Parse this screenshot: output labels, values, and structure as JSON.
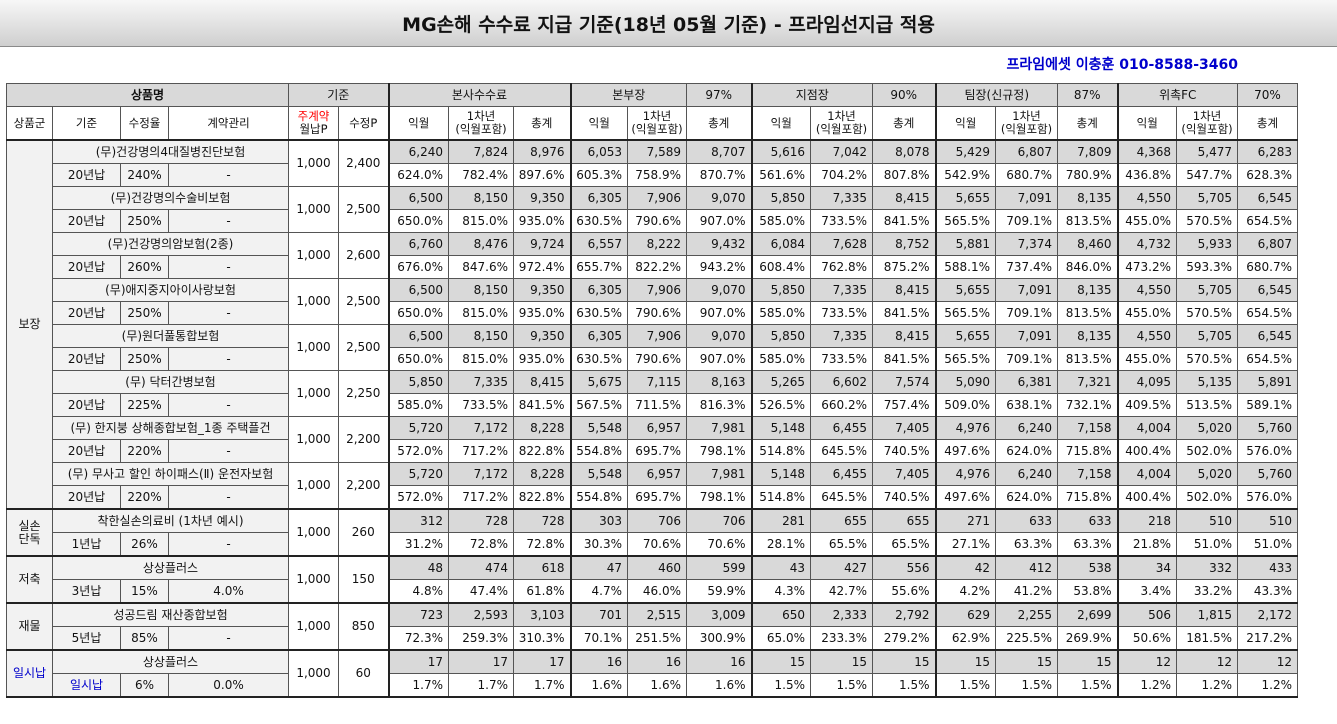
{
  "title": "MG손해 수수료 지급 기준(18년 05월 기준) - 프라임선지급 적용",
  "contact": "프라임에셋 이충훈 010-8588-3460",
  "header": {
    "product": "상품명",
    "basis": "기준",
    "hq": "본사수수료",
    "bonbu": "본부장",
    "bonbu_pct": "97%",
    "jijeom": "지점장",
    "jijeom_pct": "90%",
    "team": "팀장(신규정)",
    "team_pct": "87%",
    "wichuk": "위촉FC",
    "wichuk_pct": "70%",
    "col_group": "상품군",
    "col_basis": "기준",
    "col_rate": "수정율",
    "col_contract": "계약관리",
    "col_jugye": "주계약",
    "col_wolnap": "월납P",
    "col_sujeong": "수정P",
    "col_ikwol": "익월",
    "col_y1a": "1차년",
    "col_y1b": "(익월포함)",
    "col_total": "총계"
  },
  "rows": [
    {
      "name": "(무)건강명의4대질병진단보험",
      "basis": "20년납",
      "rate": "240%",
      "contract": "-",
      "monthly": "1,000",
      "sujeong": "2,400",
      "v": [
        "6,240",
        "7,824",
        "8,976",
        "6,053",
        "7,589",
        "8,707",
        "5,616",
        "7,042",
        "8,078",
        "5,429",
        "6,807",
        "7,809",
        "4,368",
        "5,477",
        "6,283"
      ],
      "p": [
        "624.0%",
        "782.4%",
        "897.6%",
        "605.3%",
        "758.9%",
        "870.7%",
        "561.6%",
        "704.2%",
        "807.8%",
        "542.9%",
        "680.7%",
        "780.9%",
        "436.8%",
        "547.7%",
        "628.3%"
      ]
    },
    {
      "name": "(무)건강명의수술비보험",
      "basis": "20년납",
      "rate": "250%",
      "contract": "-",
      "monthly": "1,000",
      "sujeong": "2,500",
      "v": [
        "6,500",
        "8,150",
        "9,350",
        "6,305",
        "7,906",
        "9,070",
        "5,850",
        "7,335",
        "8,415",
        "5,655",
        "7,091",
        "8,135",
        "4,550",
        "5,705",
        "6,545"
      ],
      "p": [
        "650.0%",
        "815.0%",
        "935.0%",
        "630.5%",
        "790.6%",
        "907.0%",
        "585.0%",
        "733.5%",
        "841.5%",
        "565.5%",
        "709.1%",
        "813.5%",
        "455.0%",
        "570.5%",
        "654.5%"
      ]
    },
    {
      "name": "(무)건강명의암보험(2종)",
      "basis": "20년납",
      "rate": "260%",
      "contract": "-",
      "monthly": "1,000",
      "sujeong": "2,600",
      "v": [
        "6,760",
        "8,476",
        "9,724",
        "6,557",
        "8,222",
        "9,432",
        "6,084",
        "7,628",
        "8,752",
        "5,881",
        "7,374",
        "8,460",
        "4,732",
        "5,933",
        "6,807"
      ],
      "p": [
        "676.0%",
        "847.6%",
        "972.4%",
        "655.7%",
        "822.2%",
        "943.2%",
        "608.4%",
        "762.8%",
        "875.2%",
        "588.1%",
        "737.4%",
        "846.0%",
        "473.2%",
        "593.3%",
        "680.7%"
      ]
    },
    {
      "name": "(무)애지중지아이사랑보험",
      "basis": "20년납",
      "rate": "250%",
      "contract": "-",
      "monthly": "1,000",
      "sujeong": "2,500",
      "v": [
        "6,500",
        "8,150",
        "9,350",
        "6,305",
        "7,906",
        "9,070",
        "5,850",
        "7,335",
        "8,415",
        "5,655",
        "7,091",
        "8,135",
        "4,550",
        "5,705",
        "6,545"
      ],
      "p": [
        "650.0%",
        "815.0%",
        "935.0%",
        "630.5%",
        "790.6%",
        "907.0%",
        "585.0%",
        "733.5%",
        "841.5%",
        "565.5%",
        "709.1%",
        "813.5%",
        "455.0%",
        "570.5%",
        "654.5%"
      ]
    },
    {
      "name": "(무)원더풀통합보험",
      "basis": "20년납",
      "rate": "250%",
      "contract": "-",
      "monthly": "1,000",
      "sujeong": "2,500",
      "v": [
        "6,500",
        "8,150",
        "9,350",
        "6,305",
        "7,906",
        "9,070",
        "5,850",
        "7,335",
        "8,415",
        "5,655",
        "7,091",
        "8,135",
        "4,550",
        "5,705",
        "6,545"
      ],
      "p": [
        "650.0%",
        "815.0%",
        "935.0%",
        "630.5%",
        "790.6%",
        "907.0%",
        "585.0%",
        "733.5%",
        "841.5%",
        "565.5%",
        "709.1%",
        "813.5%",
        "455.0%",
        "570.5%",
        "654.5%"
      ]
    },
    {
      "name": "(무) 닥터간병보험",
      "basis": "20년납",
      "rate": "225%",
      "contract": "-",
      "monthly": "1,000",
      "sujeong": "2,250",
      "v": [
        "5,850",
        "7,335",
        "8,415",
        "5,675",
        "7,115",
        "8,163",
        "5,265",
        "6,602",
        "7,574",
        "5,090",
        "6,381",
        "7,321",
        "4,095",
        "5,135",
        "5,891"
      ],
      "p": [
        "585.0%",
        "733.5%",
        "841.5%",
        "567.5%",
        "711.5%",
        "816.3%",
        "526.5%",
        "660.2%",
        "757.4%",
        "509.0%",
        "638.1%",
        "732.1%",
        "409.5%",
        "513.5%",
        "589.1%"
      ]
    },
    {
      "name": "(무) 한지붕 상해종합보험_1종 주택플건",
      "basis": "20년납",
      "rate": "220%",
      "contract": "-",
      "monthly": "1,000",
      "sujeong": "2,200",
      "v": [
        "5,720",
        "7,172",
        "8,228",
        "5,548",
        "6,957",
        "7,981",
        "5,148",
        "6,455",
        "7,405",
        "4,976",
        "6,240",
        "7,158",
        "4,004",
        "5,020",
        "5,760"
      ],
      "p": [
        "572.0%",
        "717.2%",
        "822.8%",
        "554.8%",
        "695.7%",
        "798.1%",
        "514.8%",
        "645.5%",
        "740.5%",
        "497.6%",
        "624.0%",
        "715.8%",
        "400.4%",
        "502.0%",
        "576.0%"
      ]
    },
    {
      "name": "(무) 무사고 할인 하이패스(Ⅱ) 운전자보험",
      "basis": "20년납",
      "rate": "220%",
      "contract": "-",
      "monthly": "1,000",
      "sujeong": "2,200",
      "v": [
        "5,720",
        "7,172",
        "8,228",
        "5,548",
        "6,957",
        "7,981",
        "5,148",
        "6,455",
        "7,405",
        "4,976",
        "6,240",
        "7,158",
        "4,004",
        "5,020",
        "5,760"
      ],
      "p": [
        "572.0%",
        "717.2%",
        "822.8%",
        "554.8%",
        "695.7%",
        "798.1%",
        "514.8%",
        "645.5%",
        "740.5%",
        "497.6%",
        "624.0%",
        "715.8%",
        "400.4%",
        "502.0%",
        "576.0%"
      ]
    },
    {
      "name": "착한실손의료비 (1차년 예시)",
      "basis": "1년납",
      "rate": "26%",
      "contract": "-",
      "monthly": "1,000",
      "sujeong": "260",
      "v": [
        "312",
        "728",
        "728",
        "303",
        "706",
        "706",
        "281",
        "655",
        "655",
        "271",
        "633",
        "633",
        "218",
        "510",
        "510"
      ],
      "p": [
        "31.2%",
        "72.8%",
        "72.8%",
        "30.3%",
        "70.6%",
        "70.6%",
        "28.1%",
        "65.5%",
        "65.5%",
        "27.1%",
        "63.3%",
        "63.3%",
        "21.8%",
        "51.0%",
        "51.0%"
      ]
    },
    {
      "name": "상상플러스",
      "basis": "3년납",
      "rate": "15%",
      "contract": "4.0%",
      "monthly": "1,000",
      "sujeong": "150",
      "v": [
        "48",
        "474",
        "618",
        "47",
        "460",
        "599",
        "43",
        "427",
        "556",
        "42",
        "412",
        "538",
        "34",
        "332",
        "433"
      ],
      "p": [
        "4.8%",
        "47.4%",
        "61.8%",
        "4.7%",
        "46.0%",
        "59.9%",
        "4.3%",
        "42.7%",
        "55.6%",
        "4.2%",
        "41.2%",
        "53.8%",
        "3.4%",
        "33.2%",
        "43.3%"
      ]
    },
    {
      "name": "성공드림 재산종합보험",
      "basis": "5년납",
      "rate": "85%",
      "contract": "-",
      "monthly": "1,000",
      "sujeong": "850",
      "v": [
        "723",
        "2,593",
        "3,103",
        "701",
        "2,515",
        "3,009",
        "650",
        "2,333",
        "2,792",
        "629",
        "2,255",
        "2,699",
        "506",
        "1,815",
        "2,172"
      ],
      "p": [
        "72.3%",
        "259.3%",
        "310.3%",
        "70.1%",
        "251.5%",
        "300.9%",
        "65.0%",
        "233.3%",
        "279.2%",
        "62.9%",
        "225.5%",
        "269.9%",
        "50.6%",
        "181.5%",
        "217.2%"
      ]
    },
    {
      "name": "상상플러스",
      "basis": "일시납",
      "rate": "6%",
      "contract": "0.0%",
      "monthly": "1,000",
      "sujeong": "60",
      "v": [
        "17",
        "17",
        "17",
        "16",
        "16",
        "16",
        "15",
        "15",
        "15",
        "15",
        "15",
        "15",
        "12",
        "12",
        "12"
      ],
      "p": [
        "1.7%",
        "1.7%",
        "1.7%",
        "1.6%",
        "1.6%",
        "1.6%",
        "1.5%",
        "1.5%",
        "1.5%",
        "1.5%",
        "1.5%",
        "1.5%",
        "1.2%",
        "1.2%",
        "1.2%"
      ]
    }
  ],
  "groups": [
    {
      "label": "보장",
      "start": 0,
      "span": 8
    },
    {
      "label_a": "실손",
      "label_b": "단독",
      "start": 8,
      "span": 1
    },
    {
      "label": "저축",
      "start": 9,
      "span": 1
    },
    {
      "label": "재물",
      "start": 10,
      "span": 1
    },
    {
      "label": "일시납",
      "start": 11,
      "span": 1
    }
  ]
}
